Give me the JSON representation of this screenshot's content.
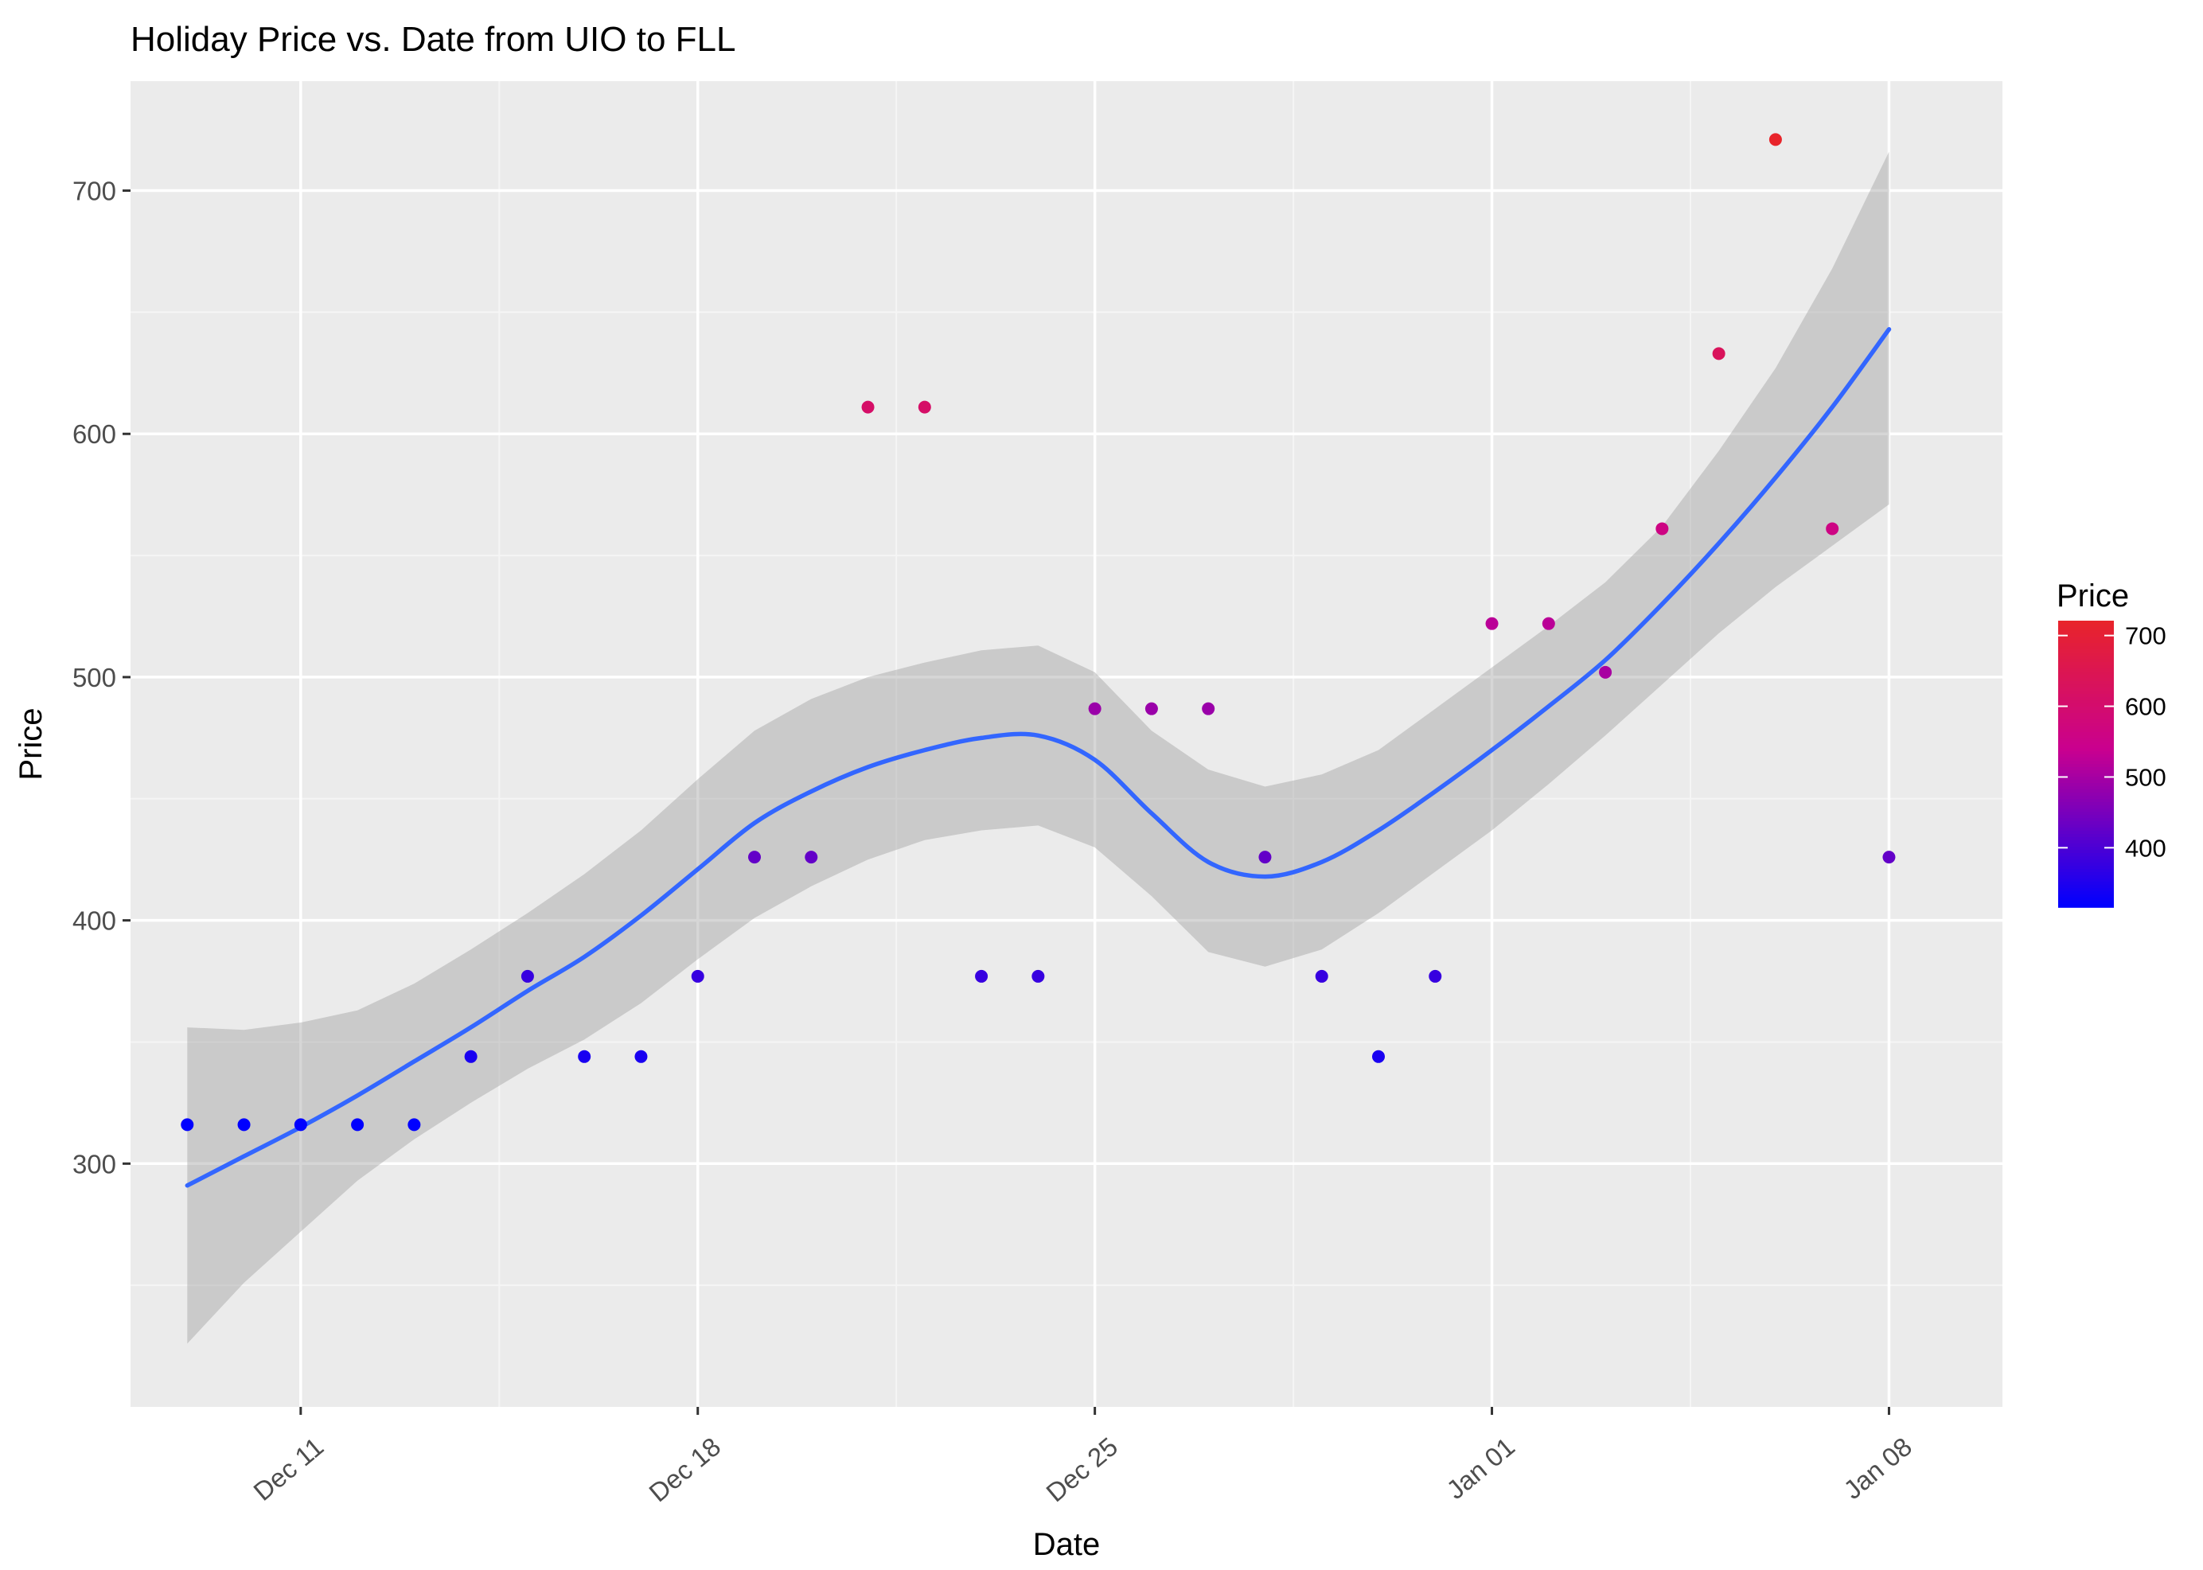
{
  "chart_data": {
    "type": "scatter",
    "title": "Holiday Price vs. Date from UIO to FLL",
    "xlabel": "Date",
    "ylabel": "Price",
    "x_ticks": [
      {
        "date": "2017-12-11",
        "label": "Dec 11"
      },
      {
        "date": "2017-12-18",
        "label": "Dec 18"
      },
      {
        "date": "2017-12-25",
        "label": "Dec 25"
      },
      {
        "date": "2018-01-01",
        "label": "Jan 01"
      },
      {
        "date": "2018-01-08",
        "label": "Jan 08"
      }
    ],
    "y_ticks": [
      300,
      400,
      500,
      600,
      700
    ],
    "xlim": [
      "2017-12-08",
      "2018-01-10"
    ],
    "ylim": [
      200,
      745
    ],
    "grid": true,
    "points": [
      {
        "date": "2017-12-09",
        "price": 316
      },
      {
        "date": "2017-12-10",
        "price": 316
      },
      {
        "date": "2017-12-11",
        "price": 316
      },
      {
        "date": "2017-12-12",
        "price": 316
      },
      {
        "date": "2017-12-13",
        "price": 316
      },
      {
        "date": "2017-12-14",
        "price": 344
      },
      {
        "date": "2017-12-15",
        "price": 377
      },
      {
        "date": "2017-12-16",
        "price": 344
      },
      {
        "date": "2017-12-17",
        "price": 344
      },
      {
        "date": "2017-12-18",
        "price": 377
      },
      {
        "date": "2017-12-19",
        "price": 426
      },
      {
        "date": "2017-12-20",
        "price": 426
      },
      {
        "date": "2017-12-21",
        "price": 611
      },
      {
        "date": "2017-12-22",
        "price": 611
      },
      {
        "date": "2017-12-23",
        "price": 377
      },
      {
        "date": "2017-12-24",
        "price": 377
      },
      {
        "date": "2017-12-25",
        "price": 487
      },
      {
        "date": "2017-12-26",
        "price": 487
      },
      {
        "date": "2017-12-27",
        "price": 487
      },
      {
        "date": "2017-12-28",
        "price": 426
      },
      {
        "date": "2017-12-29",
        "price": 377
      },
      {
        "date": "2017-12-30",
        "price": 344
      },
      {
        "date": "2017-12-31",
        "price": 377
      },
      {
        "date": "2018-01-01",
        "price": 522
      },
      {
        "date": "2018-01-02",
        "price": 522
      },
      {
        "date": "2018-01-03",
        "price": 502
      },
      {
        "date": "2018-01-04",
        "price": 561
      },
      {
        "date": "2018-01-05",
        "price": 633
      },
      {
        "date": "2018-01-06",
        "price": 721
      },
      {
        "date": "2018-01-07",
        "price": 561
      },
      {
        "date": "2018-01-08",
        "price": 426
      }
    ],
    "smooth": {
      "method": "loess",
      "color": "#3366ff",
      "band_color": "#999999",
      "fit": [
        {
          "date": "2017-12-09",
          "price": 291,
          "lower": 226,
          "upper": 356
        },
        {
          "date": "2017-12-10",
          "price": 303,
          "lower": 251,
          "upper": 355
        },
        {
          "date": "2017-12-11",
          "price": 315,
          "lower": 272,
          "upper": 358
        },
        {
          "date": "2017-12-12",
          "price": 328,
          "lower": 293,
          "upper": 363
        },
        {
          "date": "2017-12-13",
          "price": 342,
          "lower": 310,
          "upper": 374
        },
        {
          "date": "2017-12-14",
          "price": 356,
          "lower": 325,
          "upper": 388
        },
        {
          "date": "2017-12-15",
          "price": 371,
          "lower": 339,
          "upper": 403
        },
        {
          "date": "2017-12-16",
          "price": 385,
          "lower": 351,
          "upper": 419
        },
        {
          "date": "2017-12-17",
          "price": 402,
          "lower": 366,
          "upper": 437
        },
        {
          "date": "2017-12-18",
          "price": 421,
          "lower": 384,
          "upper": 458
        },
        {
          "date": "2017-12-19",
          "price": 440,
          "lower": 401,
          "upper": 478
        },
        {
          "date": "2017-12-20",
          "price": 453,
          "lower": 414,
          "upper": 491
        },
        {
          "date": "2017-12-21",
          "price": 463,
          "lower": 425,
          "upper": 500
        },
        {
          "date": "2017-12-22",
          "price": 470,
          "lower": 433,
          "upper": 506
        },
        {
          "date": "2017-12-23",
          "price": 475,
          "lower": 437,
          "upper": 511
        },
        {
          "date": "2017-12-24",
          "price": 476,
          "lower": 439,
          "upper": 513
        },
        {
          "date": "2017-12-25",
          "price": 466,
          "lower": 430,
          "upper": 502
        },
        {
          "date": "2017-12-26",
          "price": 444,
          "lower": 410,
          "upper": 478
        },
        {
          "date": "2017-12-27",
          "price": 424,
          "lower": 387,
          "upper": 462
        },
        {
          "date": "2017-12-28",
          "price": 418,
          "lower": 381,
          "upper": 455
        },
        {
          "date": "2017-12-29",
          "price": 424,
          "lower": 388,
          "upper": 460
        },
        {
          "date": "2017-12-30",
          "price": 437,
          "lower": 403,
          "upper": 470
        },
        {
          "date": "2017-12-31",
          "price": 453,
          "lower": 420,
          "upper": 487
        },
        {
          "date": "2018-01-01",
          "price": 470,
          "lower": 437,
          "upper": 504
        },
        {
          "date": "2018-01-02",
          "price": 488,
          "lower": 456,
          "upper": 521
        },
        {
          "date": "2018-01-03",
          "price": 507,
          "lower": 476,
          "upper": 539
        },
        {
          "date": "2018-01-04",
          "price": 530,
          "lower": 497,
          "upper": 562
        },
        {
          "date": "2018-01-05",
          "price": 555,
          "lower": 518,
          "upper": 593
        },
        {
          "date": "2018-01-06",
          "price": 582,
          "lower": 537,
          "upper": 627
        },
        {
          "date": "2018-01-07",
          "price": 611,
          "lower": 554,
          "upper": 668
        },
        {
          "date": "2018-01-08",
          "price": 643,
          "lower": 571,
          "upper": 716
        }
      ]
    },
    "legend": {
      "title": "Price",
      "position": "right",
      "type": "colorbar",
      "low_color": "#0000ff",
      "mid_color": "#c9008f",
      "high_color": "#e8242a",
      "range": [
        316,
        721
      ],
      "ticks": [
        400,
        500,
        600,
        700
      ]
    },
    "colors": {
      "panel_bg": "#ebebeb",
      "grid_major": "#ffffff",
      "grid_minor": "#f5f5f5"
    }
  }
}
